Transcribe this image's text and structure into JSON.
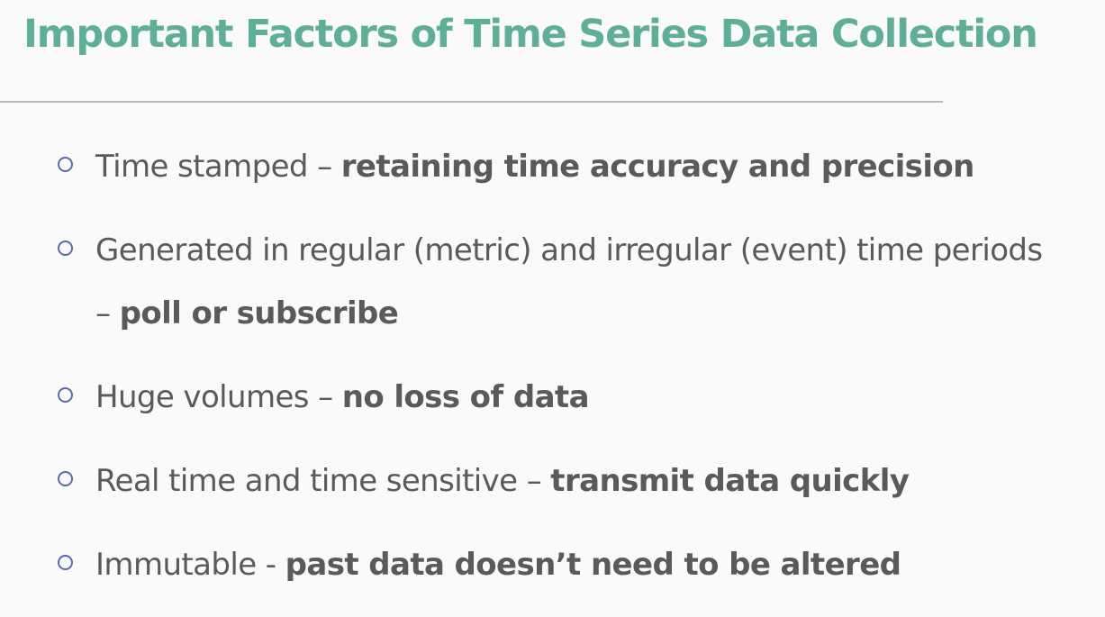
{
  "slide": {
    "title": "Important Factors of Time Series Data Collection",
    "bullets": [
      {
        "text": "Time stamped – ",
        "emphasis": "retaining time accuracy and precision"
      },
      {
        "text": "Generated in regular (metric) and irregular (event) time periods – ",
        "emphasis": "poll or subscribe"
      },
      {
        "text": "Huge volumes – ",
        "emphasis": "no loss of data"
      },
      {
        "text": "Real time and time sensitive – ",
        "emphasis": "transmit data quickly"
      },
      {
        "text": "Immutable - ",
        "emphasis": "past data doesn’t need to be altered"
      }
    ]
  },
  "colors": {
    "accent": "#5fae97",
    "text": "#5a5a5a",
    "marker": "#5b6ba8",
    "rule": "#b9b9b9",
    "background": "#fafafa"
  },
  "icons": {
    "bullet_marker": "hollow-circle-icon"
  }
}
